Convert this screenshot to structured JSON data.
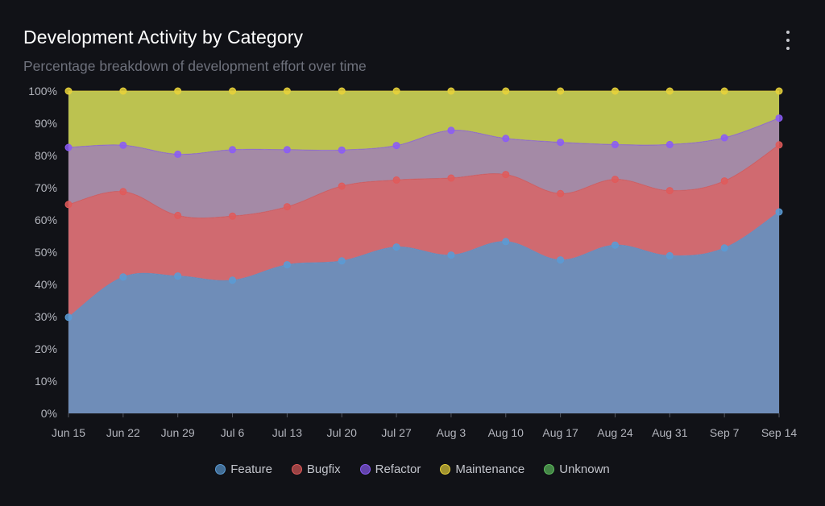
{
  "header": {
    "title": "Development Activity by Category",
    "subtitle": "Percentage breakdown of development effort over time",
    "menu_icon": "more-vertical-icon"
  },
  "chart_data": {
    "type": "area",
    "stacked": true,
    "x": [
      "Jun 15",
      "Jun 22",
      "Jun 29",
      "Jul 6",
      "Jul 13",
      "Jul 20",
      "Jul 27",
      "Aug 3",
      "Aug 10",
      "Aug 17",
      "Aug 24",
      "Aug 31",
      "Sep 7",
      "Sep 14"
    ],
    "series": [
      {
        "name": "Feature",
        "color": "#5b9bd5",
        "fill": "#6f8db8",
        "values": [
          29.8,
          42.3,
          42.6,
          41.3,
          46.1,
          47.3,
          51.6,
          49.1,
          53.3,
          47.6,
          52.2,
          48.9,
          51.3,
          62.5
        ]
      },
      {
        "name": "Bugfix",
        "color": "#e05a5a",
        "fill": "#d06a70",
        "values": [
          35.0,
          26.5,
          18.8,
          19.9,
          18.0,
          23.2,
          20.8,
          23.9,
          20.8,
          20.6,
          20.4,
          20.2,
          20.8,
          20.8
        ]
      },
      {
        "name": "Refactor",
        "color": "#8b5cf6",
        "fill": "#a48aa6",
        "values": [
          17.7,
          14.4,
          19.0,
          20.6,
          17.7,
          11.2,
          10.7,
          14.8,
          11.2,
          15.9,
          10.8,
          14.3,
          13.4,
          8.3
        ]
      },
      {
        "name": "Maintenance",
        "color": "#e8d23a",
        "fill": "#bcc250",
        "values": [
          17.5,
          16.8,
          19.6,
          18.2,
          18.2,
          18.3,
          16.9,
          12.2,
          14.7,
          15.9,
          16.6,
          16.6,
          14.5,
          8.4
        ]
      },
      {
        "name": "Unknown",
        "color": "#5fbf5f",
        "fill": "#6cbf6c",
        "values": [
          0,
          0,
          0,
          0,
          0,
          0,
          0,
          0,
          0,
          0,
          0,
          0,
          0,
          0
        ]
      }
    ],
    "ylim": [
      0,
      100
    ],
    "yticks": [
      "0%",
      "10%",
      "20%",
      "30%",
      "40%",
      "50%",
      "60%",
      "70%",
      "80%",
      "90%",
      "100%"
    ],
    "grid": true,
    "legend": "bottom-center",
    "xlabel": "",
    "ylabel": ""
  }
}
